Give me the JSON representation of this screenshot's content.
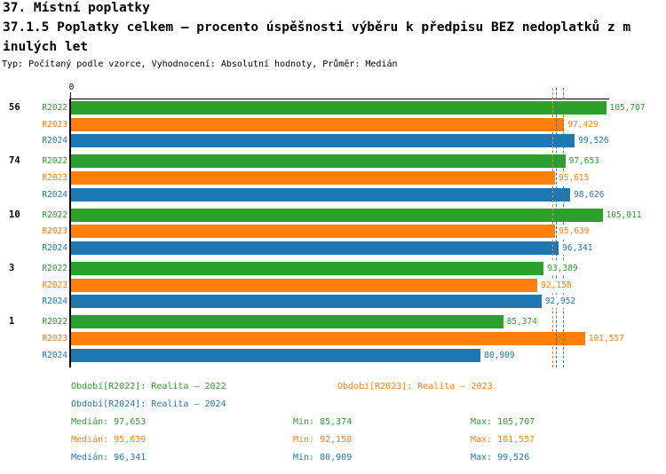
{
  "header": {
    "title_line1": "37. Místní poplatky",
    "title_line2": "37.1.5 Poplatky celkem – procento úspěšnosti výběru k předpisu BEZ nedoplatků z m",
    "title_line3": "inulých let",
    "meta": "Typ: Počítaný podle vzorce, Vyhodnocení: Absolutní hodnoty, Průměr: Medián"
  },
  "chart_data": {
    "type": "bar",
    "orientation": "horizontal",
    "title": "37.1.5 Poplatky celkem – procento úspěšnosti výběru k předpisu BEZ nedoplatků z minulých let",
    "origin_tick_label": "0",
    "xlim": [
      0,
      106.5
    ],
    "grid": false,
    "median_reference_lines": true,
    "categories": [
      "56",
      "74",
      "10",
      "3",
      "1"
    ],
    "series": [
      {
        "name": "R2022",
        "color": "#2ca02c",
        "values": [
          105.707,
          97.653,
          105.011,
          93.389,
          85.374
        ],
        "display": [
          "105,707",
          "97,653",
          "105,011",
          "93,389",
          "85,374"
        ],
        "median": 97.653
      },
      {
        "name": "R2023",
        "color": "#ff7f0e",
        "values": [
          97.429,
          95.615,
          95.639,
          92.158,
          101.557
        ],
        "display": [
          "97,429",
          "95,615",
          "95,639",
          "92,158",
          "101,557"
        ],
        "median": 95.639
      },
      {
        "name": "R2024",
        "color": "#1f77b4",
        "values": [
          99.526,
          98.626,
          96.341,
          92.952,
          80.909
        ],
        "display": [
          "99,526",
          "98,626",
          "96,341",
          "92,952",
          "80,909"
        ],
        "median": 96.341
      }
    ]
  },
  "legend": {
    "items": [
      {
        "label": "Období[R2022]: Realita – 2022",
        "color": "#2ca02c"
      },
      {
        "label": "Období[R2023]: Realita – 2023",
        "color": "#ff7f0e"
      },
      {
        "label": "Období[R2024]: Realita – 2024",
        "color": "#1f77b4"
      }
    ]
  },
  "stats": {
    "rows": [
      {
        "color": "#2ca02c",
        "median": "Medián: 97,653",
        "min": "Min: 85,374",
        "max": "Max: 105,707"
      },
      {
        "color": "#ff7f0e",
        "median": "Medián: 95,639",
        "min": "Min: 92,158",
        "max": "Max: 101,557"
      },
      {
        "color": "#1f77b4",
        "median": "Medián: 96,341",
        "min": "Min: 80,909",
        "max": "Max: 99,526"
      }
    ]
  },
  "colors": {
    "axis": "#000000",
    "background": "#ffffff"
  }
}
